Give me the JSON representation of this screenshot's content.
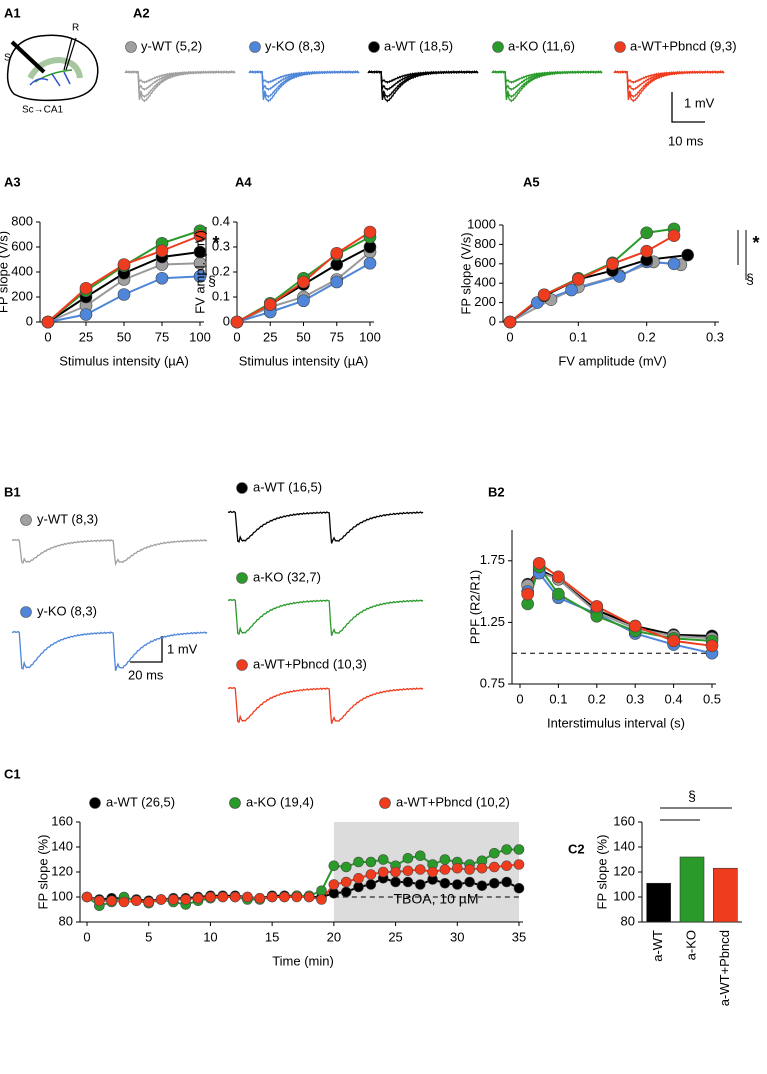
{
  "panel_labels": [
    "A1",
    "A2",
    "A3",
    "A4",
    "A5",
    "B1",
    "B2",
    "C1",
    "C2"
  ],
  "a1": {
    "stim": "S",
    "rec": "R",
    "pathway": "Sc→CA1"
  },
  "a2": {
    "scale_y": "1 mV",
    "scale_x": "10 ms"
  },
  "b1": {
    "series": [
      {
        "name": "y-WT (8,3)",
        "color": "#a0a0a0"
      },
      {
        "name": "y-KO (8,3)",
        "color": "#4f86d9"
      },
      {
        "name": "a-WT (16,5)",
        "color": "#000000"
      },
      {
        "name": "a-KO (32,7)",
        "color": "#2a9a2a"
      },
      {
        "name": "a-WT+Pbncd (10,3)",
        "color": "#f03c1e"
      }
    ],
    "scale_y": "1 mV",
    "scale_x": "20 ms"
  },
  "chart_data": [
    {
      "type": "line",
      "xlabel": "Stimulus intensity (µA)",
      "ylabel": "FP slope (V/s)",
      "x": [
        0,
        25,
        50,
        75,
        100
      ],
      "xlim": [
        0,
        100
      ],
      "xticks": [
        0,
        25,
        50,
        75,
        100
      ],
      "ylim": [
        0,
        800
      ],
      "yticks": [
        0,
        200,
        400,
        600,
        800
      ],
      "annotations": [
        "*",
        "§"
      ],
      "series": [
        {
          "name": "y-WT (5,2)",
          "color": "#a0a0a0",
          "values": [
            0,
            130,
            340,
            460,
            470
          ]
        },
        {
          "name": "y-KO (8,3)",
          "color": "#4f86d9",
          "values": [
            0,
            60,
            220,
            350,
            365
          ]
        },
        {
          "name": "a-WT (18,5)",
          "color": "#000000",
          "values": [
            0,
            200,
            390,
            520,
            560
          ]
        },
        {
          "name": "a-KO (11,6)",
          "color": "#2a9a2a",
          "values": [
            0,
            250,
            450,
            630,
            730
          ]
        },
        {
          "name": "a-WT+Pbncd (9,3)",
          "color": "#f03c1e",
          "values": [
            0,
            270,
            460,
            570,
            690
          ]
        }
      ]
    },
    {
      "type": "line",
      "xlabel": "Stimulus intensity (µA)",
      "ylabel": "FV ampl. (mV)",
      "x": [
        0,
        25,
        50,
        75,
        100
      ],
      "xlim": [
        0,
        100
      ],
      "xticks": [
        0,
        25,
        50,
        75,
        100
      ],
      "ylim": [
        0,
        0.4
      ],
      "yticks": [
        0,
        0.1,
        0.2,
        0.3,
        0.4
      ],
      "series": [
        {
          "color": "#a0a0a0",
          "values": [
            0,
            0.06,
            0.1,
            0.17,
            0.28
          ]
        },
        {
          "color": "#4f86d9",
          "values": [
            0,
            0.04,
            0.085,
            0.16,
            0.235
          ]
        },
        {
          "color": "#000000",
          "values": [
            0,
            0.07,
            0.15,
            0.23,
            0.3
          ]
        },
        {
          "color": "#2a9a2a",
          "values": [
            0,
            0.075,
            0.175,
            0.27,
            0.34
          ]
        },
        {
          "color": "#f03c1e",
          "values": [
            0,
            0.07,
            0.16,
            0.275,
            0.36
          ]
        }
      ]
    },
    {
      "type": "line",
      "xlabel": "FV amplitude (mV)",
      "ylabel": "FP slope (V/s)",
      "xlim": [
        0,
        0.3
      ],
      "xticks": [
        0,
        0.1,
        0.2,
        0.3
      ],
      "ylim": [
        0,
        1000
      ],
      "yticks": [
        0,
        200,
        400,
        600,
        800,
        1000
      ],
      "annotations": [
        "*",
        "§"
      ],
      "series": [
        {
          "color": "#a0a0a0",
          "x": [
            0,
            0.06,
            0.1,
            0.16,
            0.21,
            0.25
          ],
          "values": [
            0,
            230,
            360,
            480,
            620,
            590
          ]
        },
        {
          "color": "#4f86d9",
          "x": [
            0,
            0.04,
            0.09,
            0.16,
            0.2,
            0.24
          ],
          "values": [
            0,
            200,
            330,
            470,
            620,
            600
          ]
        },
        {
          "color": "#000000",
          "x": [
            0,
            0.05,
            0.1,
            0.15,
            0.2,
            0.26
          ],
          "values": [
            0,
            270,
            440,
            530,
            640,
            690
          ]
        },
        {
          "color": "#2a9a2a",
          "x": [
            0,
            0.05,
            0.1,
            0.15,
            0.2,
            0.24
          ],
          "values": [
            0,
            280,
            450,
            610,
            920,
            960
          ]
        },
        {
          "color": "#f03c1e",
          "x": [
            0,
            0.05,
            0.1,
            0.15,
            0.2,
            0.24
          ],
          "values": [
            0,
            280,
            440,
            600,
            730,
            890
          ]
        }
      ]
    },
    {
      "type": "line",
      "xlabel": "Interstimulus interval (s)",
      "ylabel": "PPF (R2/R1)",
      "x": [
        0.02,
        0.05,
        0.1,
        0.2,
        0.3,
        0.4,
        0.5
      ],
      "xlim": [
        0,
        0.5
      ],
      "xticks": [
        0,
        0.1,
        0.2,
        0.3,
        0.4,
        0.5
      ],
      "ylim": [
        0.75,
        2
      ],
      "yticks": [
        0.75,
        1.25,
        1.75
      ],
      "reference_line": 1,
      "series": [
        {
          "color": "#000000",
          "values": [
            1.56,
            1.68,
            1.6,
            1.35,
            1.22,
            1.15,
            1.14
          ]
        },
        {
          "color": "#a0a0a0",
          "values": [
            1.55,
            1.66,
            1.6,
            1.33,
            1.2,
            1.14,
            1.12
          ]
        },
        {
          "color": "#4f86d9",
          "values": [
            1.5,
            1.65,
            1.45,
            1.32,
            1.16,
            1.07,
            1.0
          ]
        },
        {
          "color": "#2a9a2a",
          "values": [
            1.4,
            1.7,
            1.48,
            1.3,
            1.18,
            1.12,
            1.1
          ]
        },
        {
          "color": "#f03c1e",
          "values": [
            1.48,
            1.73,
            1.62,
            1.38,
            1.22,
            1.1,
            1.06
          ]
        }
      ]
    },
    {
      "type": "line",
      "xlabel": "Time (min)",
      "ylabel": "FP slope (%)",
      "x": [
        0,
        1,
        2,
        3,
        4,
        5,
        6,
        7,
        8,
        9,
        10,
        11,
        12,
        13,
        14,
        15,
        16,
        17,
        18,
        19,
        20,
        21,
        22,
        23,
        24,
        25,
        26,
        27,
        28,
        29,
        30,
        31,
        32,
        33,
        34,
        35
      ],
      "xlim": [
        0,
        35
      ],
      "xticks": [
        0,
        5,
        10,
        15,
        20,
        25,
        30,
        35
      ],
      "ylim": [
        80,
        160
      ],
      "yticks": [
        80,
        100,
        120,
        140,
        160
      ],
      "shaded_region": [
        20,
        35
      ],
      "reference_line": 100,
      "annotations": [
        "TBOA, 10 µM"
      ],
      "series": [
        {
          "name": "a-WT (26,5)",
          "color": "#000000",
          "values": [
            100,
            98,
            99,
            99,
            98,
            97,
            98,
            99,
            99,
            100,
            101,
            101,
            101,
            100,
            99,
            101,
            101,
            101,
            100,
            100,
            103,
            104,
            108,
            110,
            115,
            112,
            112,
            110,
            114,
            111,
            110,
            112,
            109,
            111,
            112,
            107
          ]
        },
        {
          "name": "a-KO (19,4)",
          "color": "#2a9a2a",
          "values": [
            100,
            93,
            96,
            100,
            97,
            95,
            98,
            96,
            94,
            97,
            99,
            100,
            100,
            98,
            98,
            100,
            100,
            101,
            101,
            105,
            125,
            124,
            128,
            128,
            130,
            125,
            131,
            133,
            126,
            130,
            128,
            126,
            129,
            135,
            138,
            138
          ]
        },
        {
          "name": "a-WT+Pbncd (10,2)",
          "color": "#f03c1e",
          "values": [
            100,
            97,
            97,
            96,
            97,
            96,
            98,
            98,
            98,
            99,
            100,
            100,
            100,
            100,
            99,
            100,
            100,
            100,
            100,
            98,
            110,
            112,
            115,
            118,
            120,
            120,
            121,
            122,
            120,
            122,
            123,
            122,
            123,
            124,
            125,
            126
          ]
        }
      ]
    },
    {
      "type": "bar",
      "ylabel": "FP slope (%)",
      "categories": [
        "a-WT",
        "a-KO",
        "a-WT+Pbncd"
      ],
      "values": [
        111,
        132,
        123
      ],
      "colors": [
        "#000000",
        "#2a9a2a",
        "#f03c1e"
      ],
      "ylim": [
        80,
        160
      ],
      "yticks": [
        80,
        100,
        120,
        140,
        160
      ],
      "annotations": [
        "§"
      ]
    }
  ]
}
